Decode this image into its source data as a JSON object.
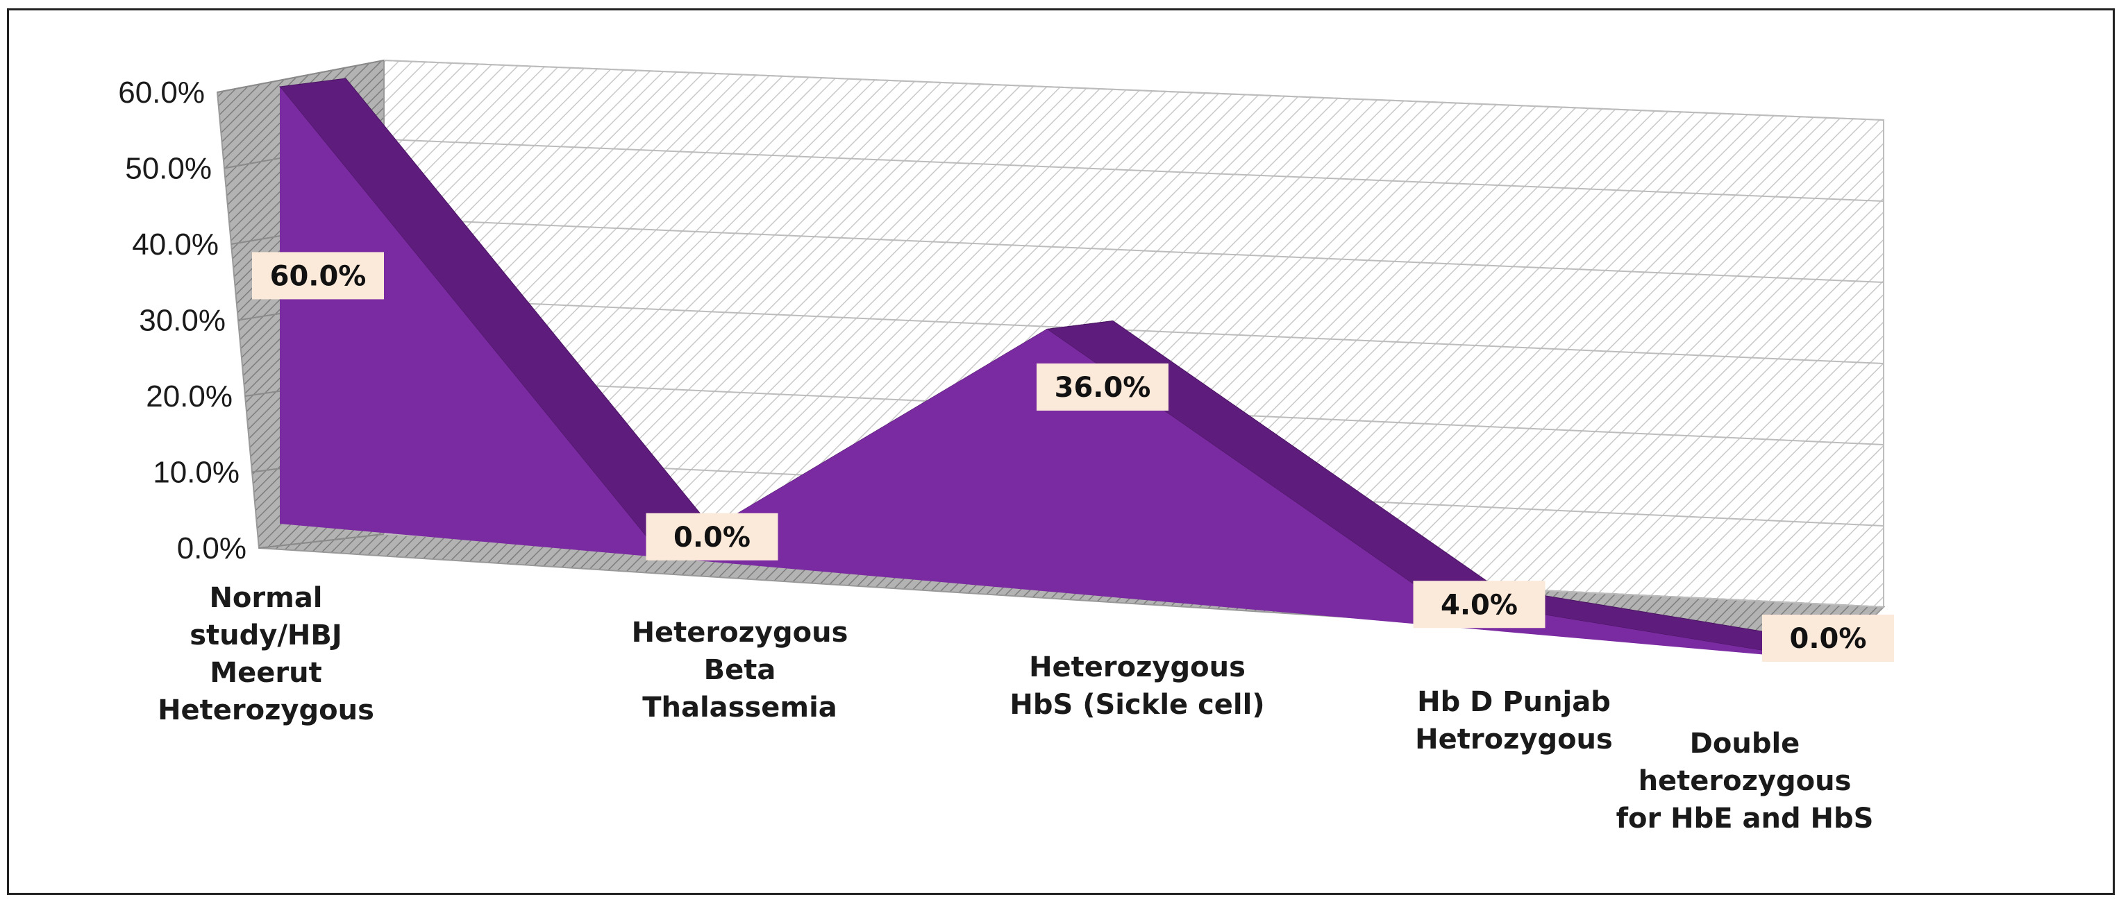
{
  "chart_data": {
    "type": "area",
    "style": "3d",
    "categories": [
      "Normal\nstudy/HBJ\nMeerut\nHeterozygous",
      "Heterozygous\nBeta\nThalassemia",
      "Heterozygous\nHbS (Sickle cell)",
      "Hb D Punjab\nHetrozygous",
      "Double\nheterozygous\nfor HbE and HbS"
    ],
    "values": [
      60.0,
      0.0,
      36.0,
      4.0,
      0.0
    ],
    "data_labels": [
      "60.0%",
      "0.0%",
      "36.0%",
      "4.0%",
      "0.0%"
    ],
    "y_ticks": [
      "0.0%",
      "10.0%",
      "20.0%",
      "30.0%",
      "40.0%",
      "50.0%",
      "60.0%"
    ],
    "ylim": [
      0,
      60
    ],
    "grid": true,
    "legend": "none",
    "colors": {
      "front": "#7B2BA1",
      "top": "#5E1C7C",
      "label_bg": "#FBE9D9",
      "wall_hatch": "#CFCFCF",
      "side_wall": "#8C8C8C"
    }
  }
}
